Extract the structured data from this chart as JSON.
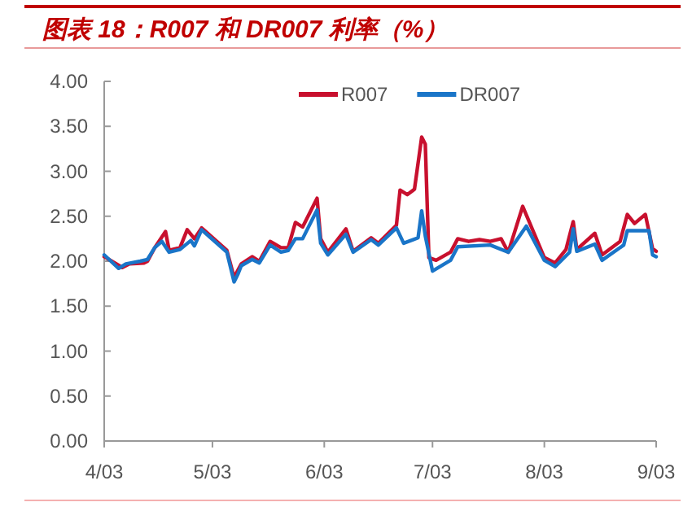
{
  "chart_data": {
    "type": "line",
    "title": "图表 18：R007 和 DR007 利率（%）",
    "legend": "top",
    "grid": false,
    "xlim": [
      "--04-03",
      "--09-03"
    ],
    "xticks": [
      {
        "value": "--04-03",
        "label": "4/03"
      },
      {
        "value": "--05-03",
        "label": "5/03"
      },
      {
        "value": "--06-03",
        "label": "6/03"
      },
      {
        "value": "--07-03",
        "label": "7/03"
      },
      {
        "value": "--08-03",
        "label": "8/03"
      },
      {
        "value": "--09-03",
        "label": "9/03"
      }
    ],
    "ylim": [
      0,
      4
    ],
    "yticks": [
      {
        "value": 0,
        "label": "0.00"
      },
      {
        "value": 0.5,
        "label": "0.50"
      },
      {
        "value": 1,
        "label": "1.00"
      },
      {
        "value": 1.5,
        "label": "1.50"
      },
      {
        "value": 2,
        "label": "2.00"
      },
      {
        "value": 2.5,
        "label": "2.50"
      },
      {
        "value": 3,
        "label": "3.00"
      },
      {
        "value": 3.5,
        "label": "3.50"
      },
      {
        "value": 4,
        "label": "4.00"
      }
    ],
    "series": [
      {
        "name": "R007",
        "color": "#c8102e",
        "x": [
          "--04-03",
          "--04-08",
          "--04-10",
          "--04-14",
          "--04-15",
          "--04-17",
          "--04-20",
          "--04-21",
          "--04-24",
          "--04-26",
          "--04-28",
          "--04-30",
          "--05-07",
          "--05-09",
          "--05-11",
          "--05-14",
          "--05-16",
          "--05-19",
          "--05-22",
          "--05-24",
          "--05-26",
          "--05-28",
          "--06-01",
          "--06-02",
          "--06-04",
          "--06-09",
          "--06-11",
          "--06-16",
          "--06-18",
          "--06-23",
          "--06-24",
          "--06-26",
          "--06-28",
          "--06-30",
          "--07-01",
          "--07-02",
          "--07-04",
          "--07-08",
          "--07-10",
          "--07-13",
          "--07-16",
          "--07-19",
          "--07-22",
          "--07-24",
          "--07-28",
          "--08-03",
          "--08-06",
          "--08-09",
          "--08-11",
          "--08-12",
          "--08-17",
          "--08-19",
          "--08-24",
          "--08-26",
          "--08-28",
          "--08-31",
          "--09-02",
          "--09-03"
        ],
        "values": [
          2.05,
          1.93,
          1.97,
          1.98,
          2.0,
          2.15,
          2.33,
          2.12,
          2.15,
          2.35,
          2.25,
          2.37,
          2.12,
          1.82,
          1.97,
          2.05,
          2.0,
          2.22,
          2.15,
          2.15,
          2.43,
          2.38,
          2.7,
          2.25,
          2.1,
          2.36,
          2.11,
          2.26,
          2.2,
          2.4,
          2.79,
          2.74,
          2.8,
          3.38,
          3.3,
          2.04,
          2.01,
          2.1,
          2.25,
          2.22,
          2.24,
          2.22,
          2.25,
          2.1,
          2.61,
          2.04,
          1.98,
          2.13,
          2.44,
          2.13,
          2.31,
          2.07,
          2.22,
          2.52,
          2.42,
          2.52,
          2.14,
          2.11
        ]
      },
      {
        "name": "DR007",
        "color": "#1a75c8",
        "x": [
          "--04-03",
          "--04-07",
          "--04-09",
          "--04-13",
          "--04-15",
          "--04-17",
          "--04-19",
          "--04-21",
          "--04-24",
          "--04-27",
          "--04-28",
          "--04-30",
          "--05-07",
          "--05-09",
          "--05-10",
          "--05-11",
          "--05-14",
          "--05-16",
          "--05-19",
          "--05-22",
          "--05-24",
          "--05-26",
          "--05-28",
          "--06-01",
          "--06-02",
          "--06-04",
          "--06-09",
          "--06-11",
          "--06-16",
          "--06-18",
          "--06-23",
          "--06-25",
          "--06-29",
          "--06-30",
          "--07-01",
          "--07-03",
          "--07-08",
          "--07-10",
          "--07-19",
          "--07-24",
          "--07-29",
          "--08-03",
          "--08-06",
          "--08-10",
          "--08-11",
          "--08-12",
          "--08-17",
          "--08-19",
          "--08-25",
          "--08-26",
          "--09-01",
          "--09-02",
          "--09-03"
        ],
        "values": [
          2.07,
          1.92,
          1.97,
          2.0,
          2.02,
          2.15,
          2.22,
          2.1,
          2.13,
          2.23,
          2.17,
          2.35,
          2.1,
          1.77,
          1.85,
          1.95,
          2.02,
          1.98,
          2.18,
          2.1,
          2.12,
          2.25,
          2.25,
          2.57,
          2.2,
          2.07,
          2.3,
          2.1,
          2.24,
          2.18,
          2.37,
          2.2,
          2.26,
          2.56,
          2.28,
          1.89,
          2.01,
          2.16,
          2.18,
          2.1,
          2.39,
          2.01,
          1.94,
          2.1,
          2.36,
          2.11,
          2.19,
          2.01,
          2.18,
          2.34,
          2.34,
          2.07,
          2.05
        ]
      }
    ]
  }
}
